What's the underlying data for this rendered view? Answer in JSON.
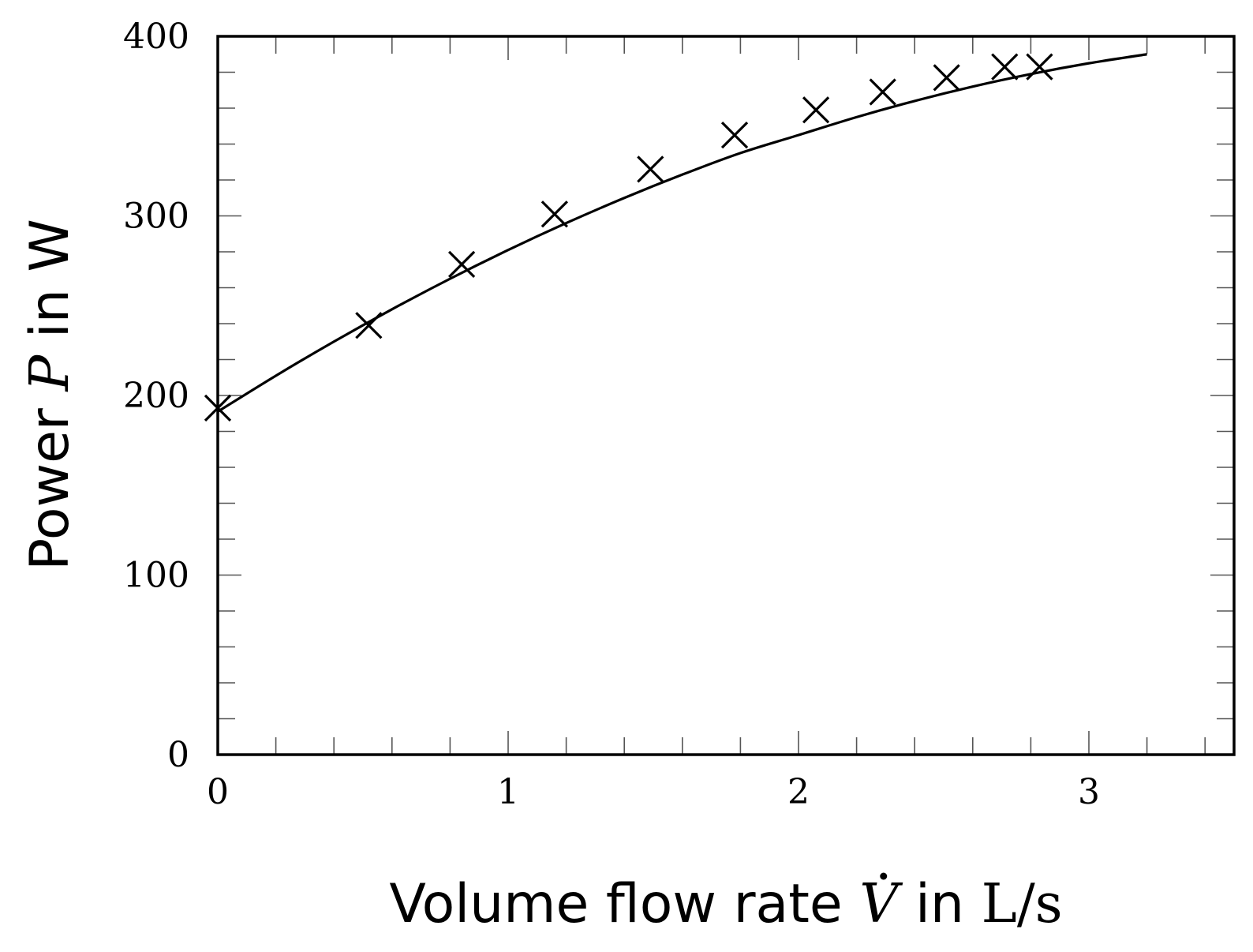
{
  "chart_data": {
    "type": "scatter",
    "xlabel": {
      "prefix": "Volume flow rate ",
      "symbol": "V",
      "mid": " in ",
      "unit": "L/s"
    },
    "ylabel": {
      "prefix": "Power ",
      "symbol": "P",
      "suffix": " in W"
    },
    "xlim": [
      0,
      3.5
    ],
    "ylim": [
      0,
      400
    ],
    "x_major_ticks": [
      0,
      1,
      2,
      3
    ],
    "x_minor_step": 0.2,
    "y_major_ticks": [
      0,
      100,
      200,
      300,
      400
    ],
    "y_minor_step": 20,
    "grid": false,
    "series": [
      {
        "marker": "x",
        "color": "#000000",
        "x": [
          0.0,
          0.52,
          0.84,
          1.16,
          1.49,
          1.78,
          2.06,
          2.29,
          2.51,
          2.71,
          2.83
        ],
        "y": [
          193,
          239,
          273,
          301,
          326,
          345,
          359,
          369,
          377,
          383,
          383
        ]
      },
      {
        "type": "line",
        "color": "#000000",
        "x": [
          0.0,
          0.2,
          0.4,
          0.6,
          0.8,
          1.0,
          1.2,
          1.4,
          1.6,
          1.8,
          2.0,
          2.2,
          2.4,
          2.6,
          2.8,
          3.0,
          3.2
        ],
        "y": [
          191,
          211,
          230,
          248,
          265,
          281,
          296,
          310,
          323,
          335,
          345,
          355,
          364,
          372,
          379,
          385,
          390
        ]
      }
    ]
  }
}
